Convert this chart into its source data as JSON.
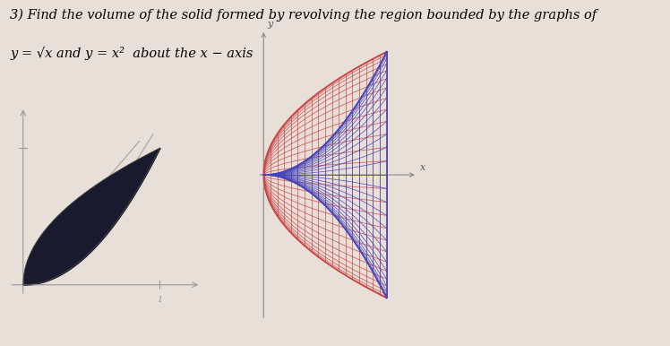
{
  "bg_color": "#e8e0d8",
  "title_line1": "3) Find the volume of the solid formed by revolving the region bounded by the graphs of",
  "title_line2": "y = √x and y = x²  about the x − axis",
  "title_fontsize": 10.5,
  "left_plot": {
    "fill_color": "#1a1a2e",
    "axis_color": "#999999",
    "line_color": "#aaaaaa"
  },
  "right_plot": {
    "outer_color": "#cc4444",
    "inner_color": "#4444bb",
    "n_radial": 28,
    "n_horiz": 18,
    "axis_color": "#888888"
  }
}
